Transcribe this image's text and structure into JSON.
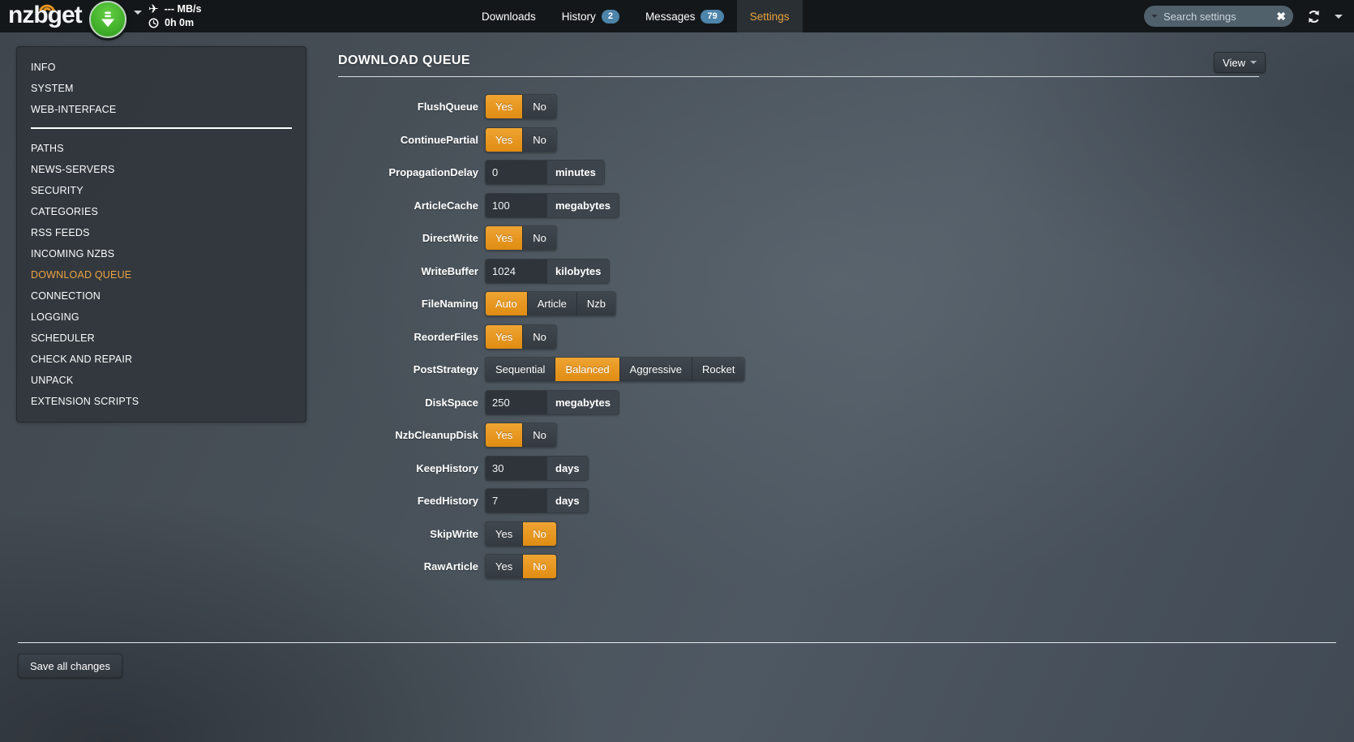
{
  "navbar": {
    "logo_text": "nzbget",
    "speed": "--- MB/s",
    "time_remaining": "0h 0m",
    "tabs": [
      {
        "label": "Downloads"
      },
      {
        "label": "History",
        "badge": "2"
      },
      {
        "label": "Messages",
        "badge": "79"
      },
      {
        "label": "Settings",
        "active": true
      }
    ],
    "search": {
      "placeholder": "Search settings"
    }
  },
  "sidebar": {
    "active_item": "DOWNLOAD QUEUE",
    "items": [
      {
        "label": "INFO"
      },
      {
        "label": "SYSTEM"
      },
      {
        "label": "WEB-INTERFACE"
      },
      {
        "divider": true
      },
      {
        "label": "PATHS"
      },
      {
        "label": "NEWS-SERVERS"
      },
      {
        "label": "SECURITY"
      },
      {
        "label": "CATEGORIES"
      },
      {
        "label": "RSS FEEDS"
      },
      {
        "label": "INCOMING NZBS"
      },
      {
        "label": "DOWNLOAD QUEUE"
      },
      {
        "label": "CONNECTION"
      },
      {
        "label": "LOGGING"
      },
      {
        "label": "SCHEDULER"
      },
      {
        "label": "CHECK AND REPAIR"
      },
      {
        "label": "UNPACK"
      },
      {
        "label": "EXTENSION SCRIPTS"
      }
    ]
  },
  "main": {
    "title": "DOWNLOAD QUEUE",
    "view_button_label": "View",
    "settings": [
      {
        "label": "FlushQueue",
        "type": "toggle",
        "options": [
          "Yes",
          "No"
        ],
        "selected": "Yes"
      },
      {
        "label": "ContinuePartial",
        "type": "toggle",
        "options": [
          "Yes",
          "No"
        ],
        "selected": "Yes"
      },
      {
        "label": "PropagationDelay",
        "type": "input",
        "value": "0",
        "unit": "minutes"
      },
      {
        "label": "ArticleCache",
        "type": "input",
        "value": "100",
        "unit": "megabytes"
      },
      {
        "label": "DirectWrite",
        "type": "toggle",
        "options": [
          "Yes",
          "No"
        ],
        "selected": "Yes"
      },
      {
        "label": "WriteBuffer",
        "type": "input",
        "value": "1024",
        "unit": "kilobytes"
      },
      {
        "label": "FileNaming",
        "type": "toggle",
        "options": [
          "Auto",
          "Article",
          "Nzb"
        ],
        "selected": "Auto"
      },
      {
        "label": "ReorderFiles",
        "type": "toggle",
        "options": [
          "Yes",
          "No"
        ],
        "selected": "Yes"
      },
      {
        "label": "PostStrategy",
        "type": "toggle",
        "options": [
          "Sequential",
          "Balanced",
          "Aggressive",
          "Rocket"
        ],
        "selected": "Balanced"
      },
      {
        "label": "DiskSpace",
        "type": "input",
        "value": "250",
        "unit": "megabytes"
      },
      {
        "label": "NzbCleanupDisk",
        "type": "toggle",
        "options": [
          "Yes",
          "No"
        ],
        "selected": "Yes"
      },
      {
        "label": "KeepHistory",
        "type": "input",
        "value": "30",
        "unit": "days"
      },
      {
        "label": "FeedHistory",
        "type": "input",
        "value": "7",
        "unit": "days"
      },
      {
        "label": "SkipWrite",
        "type": "toggle",
        "options": [
          "Yes",
          "No"
        ],
        "selected": "No"
      },
      {
        "label": "RawArticle",
        "type": "toggle",
        "options": [
          "Yes",
          "No"
        ],
        "selected": "No"
      }
    ],
    "save_button_label": "Save all changes"
  },
  "colors": {
    "accent_orange": "#e8941f",
    "active_tab_text": "#e8a33c",
    "badge_blue": "#4d84aa",
    "logo_green": "#43b029",
    "navbar_bg": "#141719",
    "panel_bg": "#31373d"
  }
}
